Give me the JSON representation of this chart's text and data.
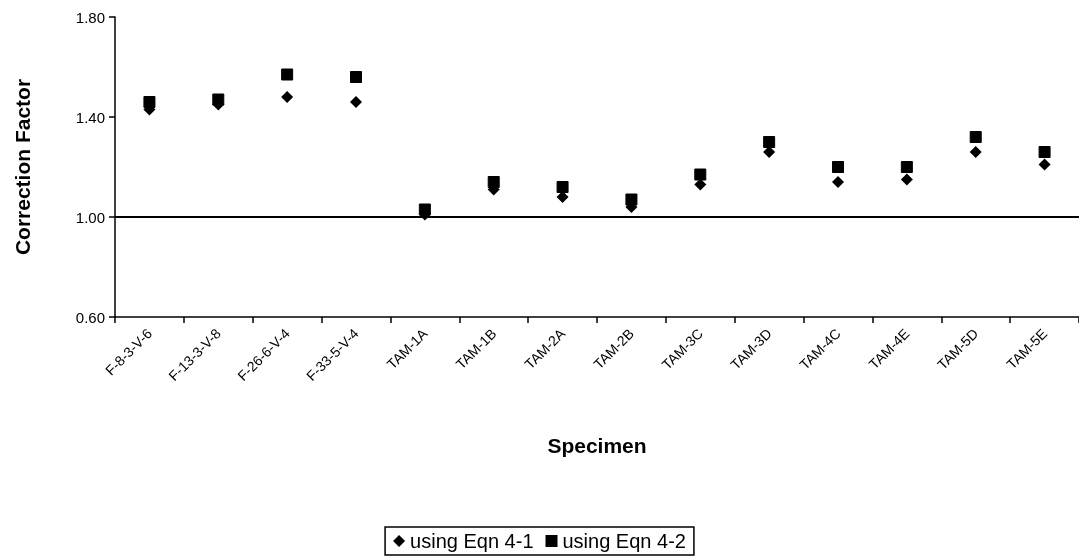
{
  "chart_data": {
    "type": "scatter",
    "xlabel": "Specimen",
    "ylabel": "Correction Factor",
    "categories": [
      "F-8-3-V-6",
      "F-13-3-V-8",
      "F-26-6-V-4",
      "F-33-5-V-4",
      "TAM-1A",
      "TAM-1B",
      "TAM-2A",
      "TAM-2B",
      "TAM-3C",
      "TAM-3D",
      "TAM-4C",
      "TAM-4E",
      "TAM-5D",
      "TAM-5E"
    ],
    "series": [
      {
        "name": "using Eqn 4-1",
        "color": "#000000",
        "marker": "diamond",
        "values": [
          1.43,
          1.45,
          1.48,
          1.46,
          1.01,
          1.11,
          1.08,
          1.04,
          1.13,
          1.26,
          1.14,
          1.15,
          1.26,
          1.21
        ]
      },
      {
        "name": "using Eqn 4-2",
        "color": "#000000",
        "marker": "square",
        "values": [
          1.46,
          1.47,
          1.57,
          1.56,
          1.03,
          1.14,
          1.12,
          1.07,
          1.17,
          1.3,
          1.2,
          1.2,
          1.32,
          1.26
        ]
      }
    ],
    "ylim": [
      0.6,
      1.8
    ],
    "yticks": [
      {
        "value": 0.6,
        "label": "0.60"
      },
      {
        "value": 1.0,
        "label": "1.00"
      },
      {
        "value": 1.4,
        "label": "1.40"
      },
      {
        "value": 1.8,
        "label": "1.80"
      }
    ],
    "ref_lines": [
      {
        "axis": "y",
        "value": 1.0,
        "color": "#000000",
        "line_style": "solid"
      }
    ],
    "grid": false,
    "legend": "bottom"
  }
}
